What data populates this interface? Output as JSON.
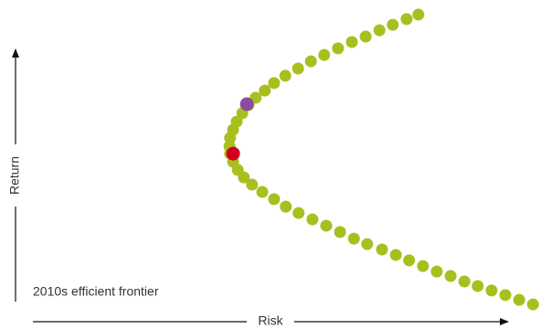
{
  "chart_data": {
    "type": "scatter",
    "x_label": "Risk",
    "y_label": "Return",
    "annotation": "2010s efficient frontier",
    "xlim": [
      0,
      100
    ],
    "ylim": [
      0,
      100
    ],
    "series": [
      {
        "color": "#a9bf1f",
        "x": [
          76.4,
          74.1,
          71.4,
          68.8,
          66.1,
          63.4,
          60.7,
          58.0,
          55.4,
          52.9,
          50.4,
          48.2,
          46.4,
          44.6,
          43.2,
          42.0,
          40.9,
          40.2,
          39.6,
          39.5,
          39.6,
          40.2,
          41.1,
          42.3,
          43.9,
          45.9,
          48.2,
          50.5,
          53.0,
          55.7,
          58.4,
          61.1,
          63.8,
          66.4,
          69.3,
          72.0,
          74.6,
          77.3,
          80.0,
          82.7,
          85.4,
          88.0,
          90.7,
          93.4,
          96.1,
          98.8
        ],
        "values": [
          98.2,
          96.7,
          94.8,
          93.0,
          90.9,
          89.1,
          87.0,
          84.8,
          82.7,
          80.3,
          77.9,
          75.5,
          73.0,
          70.6,
          68.2,
          65.5,
          62.7,
          60.0,
          57.3,
          54.5,
          52.1,
          49.4,
          46.7,
          44.2,
          41.8,
          39.4,
          37.0,
          34.5,
          32.4,
          30.3,
          28.2,
          26.1,
          23.9,
          22.1,
          20.3,
          18.5,
          16.7,
          14.8,
          13.0,
          11.5,
          9.7,
          8.2,
          6.7,
          5.2,
          3.6,
          2.1
        ]
      },
      {
        "color": "#8a4d9e",
        "x": [
          42.9
        ],
        "values": [
          68.5
        ]
      },
      {
        "color": "#d2001c",
        "x": [
          40.2
        ],
        "values": [
          52.1
        ]
      }
    ]
  }
}
